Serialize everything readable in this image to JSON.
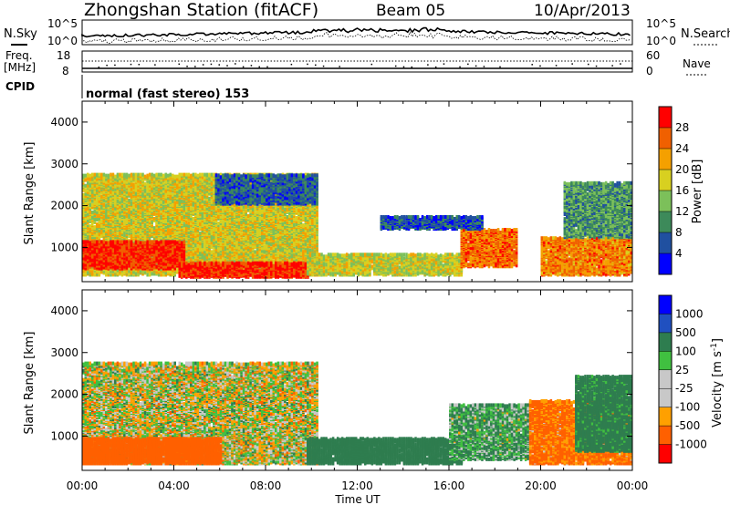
{
  "header": {
    "title": "Zhongshan Station (fitACF)",
    "beam": "Beam 05",
    "date": "10/Apr/2013"
  },
  "nsky_panel": {
    "left_label": "N.Sky",
    "left_ticks": [
      "10^5",
      "10^0"
    ],
    "right_label": "N.Search",
    "right_ticks": [
      "10^5",
      "10^0"
    ]
  },
  "freq_panel": {
    "left_label_line1": "Freq.",
    "left_label_line2": "[MHz]",
    "left_ticks": [
      "18",
      "8"
    ],
    "right_label": "Nave",
    "right_ticks": [
      "60",
      "0"
    ]
  },
  "cpid": {
    "label": "CPID",
    "mode": "normal (fast stereo) 153"
  },
  "axes": {
    "ylabel": "Slant Range [km]",
    "xlabel": "Time UT",
    "y_ticks": [
      "1000",
      "2000",
      "3000",
      "4000"
    ],
    "x_ticks": [
      "00:00",
      "04:00",
      "08:00",
      "12:00",
      "16:00",
      "20:00",
      "00:00"
    ]
  },
  "colors": {
    "power_scale": [
      "#0000ff",
      "#2050a0",
      "#3d8a5a",
      "#7cc05a",
      "#d8d020",
      "#f5a000",
      "#f06000",
      "#ff0000"
    ],
    "velocity_scale": [
      "#ff0000",
      "#ff6000",
      "#ffa000",
      "#c8c8c8",
      "#c8c8c8",
      "#40c040",
      "#2e7d4f",
      "#2050c0",
      "#0000ff"
    ]
  },
  "chart_data": [
    {
      "type": "heatmap",
      "panel": "power",
      "colorbar_label": "Power [dB]",
      "colorbar_ticks": [
        "4",
        "8",
        "12",
        "16",
        "20",
        "24",
        "28"
      ],
      "clim": [
        0,
        32
      ],
      "xlim_hours": [
        0,
        24
      ],
      "ylim_km": [
        180,
        4500
      ],
      "regions": [
        {
          "t0": 0.0,
          "t1": 10.2,
          "r0": 300,
          "r1": 2700,
          "level": 18
        },
        {
          "t0": 0.0,
          "t1": 4.5,
          "r0": 450,
          "r1": 1100,
          "level": 29
        },
        {
          "t0": 4.2,
          "t1": 9.8,
          "r0": 250,
          "r1": 600,
          "level": 29
        },
        {
          "t0": 5.8,
          "t1": 10.2,
          "r0": 2000,
          "r1": 2700,
          "level": 7
        },
        {
          "t0": 9.8,
          "t1": 16.5,
          "r0": 300,
          "r1": 800,
          "level": 17
        },
        {
          "t0": 16.5,
          "t1": 19.0,
          "r0": 500,
          "r1": 1400,
          "level": 25
        },
        {
          "t0": 13.0,
          "t1": 17.5,
          "r0": 1400,
          "r1": 1700,
          "level": 6
        },
        {
          "t0": 20.0,
          "t1": 24.0,
          "r0": 300,
          "r1": 1200,
          "level": 24
        },
        {
          "t0": 21.0,
          "t1": 24.0,
          "r0": 1200,
          "r1": 2500,
          "level": 11
        }
      ]
    },
    {
      "type": "heatmap",
      "panel": "velocity",
      "colorbar_label": "Velocity [m s^-1]",
      "colorbar_ticks": [
        "1000",
        "500",
        "100",
        "25",
        "-25",
        "-100",
        "-500",
        "-1000"
      ],
      "clim": [
        -1000,
        1000
      ],
      "xlim_hours": [
        0,
        24
      ],
      "ylim_km": [
        180,
        4500
      ],
      "regions": [
        {
          "t0": 0.0,
          "t1": 10.2,
          "r0": 300,
          "r1": 2700,
          "level": 0
        },
        {
          "t0": 0.0,
          "t1": 6.0,
          "r0": 300,
          "r1": 900,
          "level": -300
        },
        {
          "t0": 9.8,
          "t1": 16.5,
          "r0": 300,
          "r1": 900,
          "level": 300
        },
        {
          "t0": 16.0,
          "t1": 19.5,
          "r0": 400,
          "r1": 1700,
          "level": 100
        },
        {
          "t0": 19.5,
          "t1": 24.0,
          "r0": 300,
          "r1": 1800,
          "level": -150
        },
        {
          "t0": 21.5,
          "t1": 24.0,
          "r0": 600,
          "r1": 2400,
          "level": 200
        }
      ]
    }
  ]
}
